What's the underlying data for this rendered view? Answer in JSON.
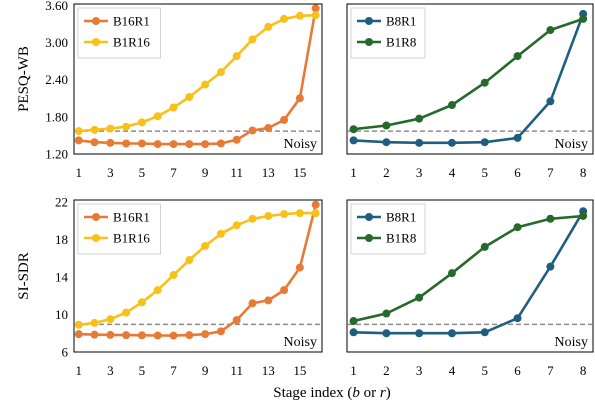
{
  "xlabel_parts": {
    "pre": "Stage index (",
    "b": "b",
    "mid": " or ",
    "r": "r",
    "post": ")"
  },
  "colors": {
    "orange": "#e87a37",
    "yellow": "#f8c11a",
    "blue": "#205e80",
    "green": "#26692b",
    "noisy": "#8c8c8c"
  },
  "chart_data": [
    {
      "type": "line",
      "panel": "top-left",
      "ylabel": "PESQ-WB",
      "x": [
        1,
        2,
        3,
        4,
        5,
        6,
        7,
        8,
        9,
        10,
        11,
        12,
        13,
        14,
        15,
        16
      ],
      "xticks": [
        1,
        3,
        5,
        7,
        9,
        11,
        13,
        15
      ],
      "xlim": [
        0.7,
        16.4
      ],
      "yticks": [
        1.2,
        1.8,
        2.4,
        3.0,
        3.6
      ],
      "ytick_labels": [
        "1.20",
        "1.80",
        "2.40",
        "3.00",
        "3.60"
      ],
      "ylim": [
        1.2,
        3.62
      ],
      "noisy_value": 1.57,
      "noisy_label": "Noisy",
      "legend_position": "top-left",
      "series": [
        {
          "name": "B16R1",
          "color": "#e87a37",
          "values": [
            1.42,
            1.39,
            1.38,
            1.37,
            1.37,
            1.36,
            1.36,
            1.36,
            1.36,
            1.37,
            1.43,
            1.58,
            1.62,
            1.75,
            2.1,
            3.55
          ]
        },
        {
          "name": "B1R16",
          "color": "#f8c11a",
          "values": [
            1.57,
            1.59,
            1.61,
            1.64,
            1.71,
            1.81,
            1.95,
            2.12,
            2.32,
            2.52,
            2.78,
            3.05,
            3.25,
            3.38,
            3.43,
            3.44
          ]
        }
      ]
    },
    {
      "type": "line",
      "panel": "top-right",
      "ylabel": "",
      "x": [
        1,
        2,
        3,
        4,
        5,
        6,
        7,
        8
      ],
      "xticks": [
        1,
        2,
        3,
        4,
        5,
        6,
        7,
        8
      ],
      "xlim": [
        0.8,
        8.3
      ],
      "yticks": [],
      "ytick_labels": [],
      "ylim": [
        1.2,
        3.62
      ],
      "noisy_value": 1.57,
      "noisy_label": "Noisy",
      "legend_position": "top-left",
      "series": [
        {
          "name": "B8R1",
          "color": "#205e80",
          "values": [
            1.42,
            1.39,
            1.38,
            1.38,
            1.39,
            1.46,
            2.05,
            3.46
          ]
        },
        {
          "name": "B1R8",
          "color": "#26692b",
          "values": [
            1.6,
            1.66,
            1.77,
            1.99,
            2.35,
            2.78,
            3.2,
            3.38
          ]
        }
      ]
    },
    {
      "type": "line",
      "panel": "bottom-left",
      "ylabel": "SI-SDR",
      "x": [
        1,
        2,
        3,
        4,
        5,
        6,
        7,
        8,
        9,
        10,
        11,
        12,
        13,
        14,
        15,
        16
      ],
      "xticks": [
        1,
        3,
        5,
        7,
        9,
        11,
        13,
        15
      ],
      "xlim": [
        0.7,
        16.4
      ],
      "yticks": [
        6,
        10,
        14,
        18,
        22
      ],
      "ytick_labels": [
        "6",
        "10",
        "14",
        "18",
        "22"
      ],
      "ylim": [
        6,
        22.2
      ],
      "noisy_value": 8.95,
      "noisy_label": "Noisy",
      "legend_position": "top-left",
      "series": [
        {
          "name": "B16R1",
          "color": "#e87a37",
          "values": [
            7.9,
            7.85,
            7.82,
            7.8,
            7.78,
            7.76,
            7.75,
            7.8,
            7.9,
            8.2,
            9.4,
            11.2,
            11.5,
            12.6,
            15.0,
            21.7
          ]
        },
        {
          "name": "B1R16",
          "color": "#f8c11a",
          "values": [
            8.9,
            9.1,
            9.5,
            10.2,
            11.3,
            12.6,
            14.2,
            15.8,
            17.3,
            18.6,
            19.5,
            20.2,
            20.5,
            20.7,
            20.8,
            20.8
          ]
        }
      ]
    },
    {
      "type": "line",
      "panel": "bottom-right",
      "ylabel": "",
      "x": [
        1,
        2,
        3,
        4,
        5,
        6,
        7,
        8
      ],
      "xticks": [
        1,
        2,
        3,
        4,
        5,
        6,
        7,
        8
      ],
      "xlim": [
        0.8,
        8.3
      ],
      "yticks": [],
      "ytick_labels": [],
      "ylim": [
        6,
        22.2
      ],
      "noisy_value": 8.95,
      "noisy_label": "Noisy",
      "legend_position": "top-left",
      "series": [
        {
          "name": "B8R1",
          "color": "#205e80",
          "values": [
            8.1,
            8.0,
            8.0,
            8.0,
            8.1,
            9.6,
            15.1,
            21.0
          ]
        },
        {
          "name": "B1R8",
          "color": "#26692b",
          "values": [
            9.3,
            10.1,
            11.8,
            14.4,
            17.2,
            19.3,
            20.2,
            20.5
          ]
        }
      ]
    }
  ]
}
